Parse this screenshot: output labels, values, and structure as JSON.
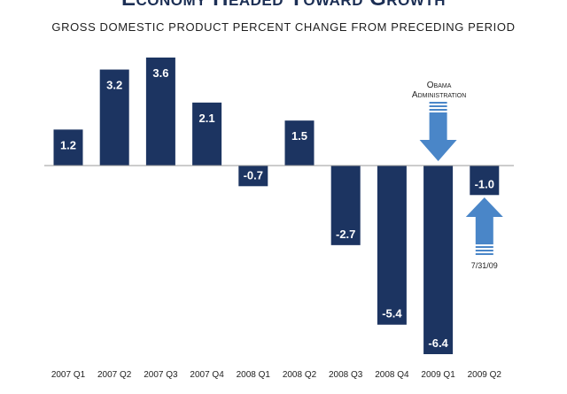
{
  "chart_data": {
    "type": "bar",
    "title": "Economy Headed Toward Growth",
    "subtitle": "GROSS DOMESTIC PRODUCT PERCENT CHANGE FROM PRECEDING PERIOD",
    "categories": [
      "2007 Q1",
      "2007 Q2",
      "2007 Q3",
      "2007 Q4",
      "2008 Q1",
      "2008 Q2",
      "2008 Q3",
      "2008 Q4",
      "2009 Q1",
      "2009 Q2"
    ],
    "values": [
      1.2,
      3.2,
      3.6,
      2.1,
      -0.7,
      1.5,
      -2.7,
      -5.4,
      -6.4,
      -1.0
    ],
    "value_labels": [
      "1.2",
      "3.2",
      "3.6",
      "2.1",
      "-0.7",
      "1.5",
      "-2.7",
      "-5.4",
      "-6.4",
      "-1.0"
    ],
    "ylim": [
      -6.4,
      3.6
    ],
    "grid": false,
    "bar_color": "#1c3461",
    "annotations": [
      {
        "text_lines": [
          "Obama",
          "Administration"
        ],
        "category": "2009 Q1",
        "arrow": "down",
        "color": "#4a86c8"
      },
      {
        "text_lines": [
          "7/31/09"
        ],
        "category": "2009 Q2",
        "arrow": "up",
        "color": "#4a86c8"
      }
    ]
  }
}
